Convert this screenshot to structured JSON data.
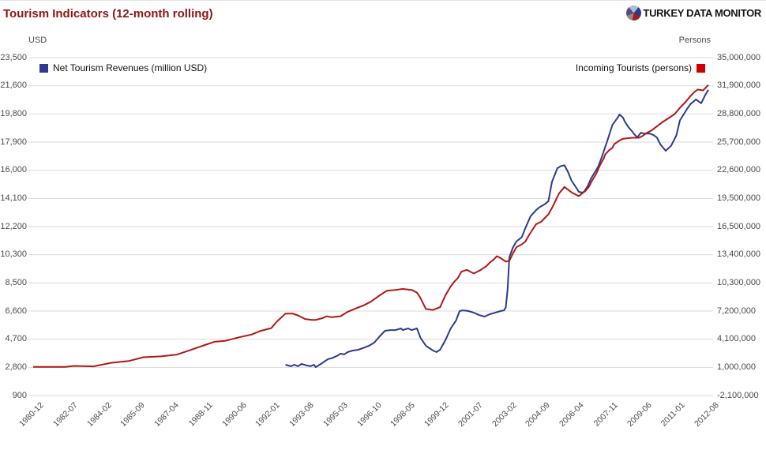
{
  "header": {
    "title": "Tourism Indicators (12-month rolling)",
    "logo_text": "TURKEY DATA MONITOR",
    "logo_pie_segments": [
      [
        "#a8bfd4",
        22
      ],
      [
        "#2e3a8f",
        22
      ],
      [
        "#a51b1b",
        20
      ],
      [
        "#8b8b8b",
        16
      ],
      [
        "#5c4a7d",
        20
      ]
    ]
  },
  "chart_data": {
    "type": "line",
    "title": "Tourism Indicators (12-month rolling)",
    "grid": true,
    "legend_position": "top",
    "left_axis": {
      "unit_label": "USD",
      "min": 900,
      "max": 23500,
      "ticks": [
        "23,500",
        "21,600",
        "19,800",
        "17,900",
        "16,000",
        "14,100",
        "12,200",
        "10,300",
        "8,500",
        "6,600",
        "4,700",
        "2,800",
        "900"
      ]
    },
    "right_axis": {
      "unit_label": "Persons",
      "min": -2100000,
      "max": 35000000,
      "ticks": [
        "35,000,000",
        "31,900,000",
        "28,800,000",
        "25,700,000",
        "22,600,000",
        "19,500,000",
        "16,500,000",
        "13,400,000",
        "10,300,000",
        "7,200,000",
        "4,100,000",
        "1,000,000",
        "-2,100,000"
      ]
    },
    "x_axis": {
      "start_month": "1980-12",
      "end_month": "2012-08",
      "months_total": 380,
      "tick_labels": [
        "1980-12",
        "1982-07",
        "1984-02",
        "1985-09",
        "1987-04",
        "1988-11",
        "1990-06",
        "1992-01",
        "1993-08",
        "1995-03",
        "1996-10",
        "1998-05",
        "1999-12",
        "2001-07",
        "2003-02",
        "2004-09",
        "2006-04",
        "2007-11",
        "2009-06",
        "2011-01",
        "2012-08"
      ]
    },
    "series": [
      {
        "name": "Net Tourism Revenues (million USD)",
        "axis": "left",
        "color": "#2e3a8f",
        "legend_swatch": "#2e3a8f",
        "points": [
          [
            142,
            2960
          ],
          [
            145,
            2860
          ],
          [
            147,
            2960
          ],
          [
            149,
            2860
          ],
          [
            151,
            3020
          ],
          [
            154,
            2910
          ],
          [
            156,
            2860
          ],
          [
            158,
            2960
          ],
          [
            159,
            2800
          ],
          [
            162,
            3020
          ],
          [
            164,
            3180
          ],
          [
            166,
            3340
          ],
          [
            168,
            3390
          ],
          [
            171,
            3550
          ],
          [
            173,
            3700
          ],
          [
            175,
            3650
          ],
          [
            177,
            3810
          ],
          [
            180,
            3910
          ],
          [
            183,
            3960
          ],
          [
            186,
            4090
          ],
          [
            189,
            4230
          ],
          [
            192,
            4440
          ],
          [
            195,
            4860
          ],
          [
            198,
            5230
          ],
          [
            201,
            5280
          ],
          [
            204,
            5280
          ],
          [
            207,
            5390
          ],
          [
            208,
            5280
          ],
          [
            211,
            5390
          ],
          [
            213,
            5280
          ],
          [
            216,
            5390
          ],
          [
            218,
            4760
          ],
          [
            221,
            4230
          ],
          [
            225,
            3910
          ],
          [
            227,
            3810
          ],
          [
            229,
            3960
          ],
          [
            232,
            4600
          ],
          [
            235,
            5390
          ],
          [
            238,
            5920
          ],
          [
            240,
            6550
          ],
          [
            242,
            6600
          ],
          [
            245,
            6550
          ],
          [
            248,
            6440
          ],
          [
            251,
            6280
          ],
          [
            254,
            6180
          ],
          [
            257,
            6340
          ],
          [
            260,
            6440
          ],
          [
            263,
            6550
          ],
          [
            265,
            6600
          ],
          [
            266,
            6810
          ],
          [
            267,
            8000
          ],
          [
            268,
            10150
          ],
          [
            270,
            10800
          ],
          [
            272,
            11200
          ],
          [
            275,
            11500
          ],
          [
            277,
            12100
          ],
          [
            280,
            12900
          ],
          [
            283,
            13300
          ],
          [
            285,
            13500
          ],
          [
            288,
            13700
          ],
          [
            290,
            13900
          ],
          [
            292,
            15200
          ],
          [
            295,
            16100
          ],
          [
            297,
            16250
          ],
          [
            299,
            16300
          ],
          [
            301,
            15850
          ],
          [
            303,
            15260
          ],
          [
            306,
            14740
          ],
          [
            307,
            14530
          ],
          [
            309,
            14470
          ],
          [
            310,
            14530
          ],
          [
            312,
            14890
          ],
          [
            314,
            15420
          ],
          [
            318,
            16210
          ],
          [
            320,
            16840
          ],
          [
            323,
            17900
          ],
          [
            326,
            19000
          ],
          [
            329,
            19500
          ],
          [
            330,
            19700
          ],
          [
            332,
            19480
          ],
          [
            333,
            19210
          ],
          [
            335,
            18850
          ],
          [
            337,
            18580
          ],
          [
            338,
            18420
          ],
          [
            340,
            18160
          ],
          [
            342,
            18480
          ],
          [
            344,
            18420
          ],
          [
            347,
            18420
          ],
          [
            349,
            18330
          ],
          [
            351,
            18160
          ],
          [
            353,
            17690
          ],
          [
            356,
            17270
          ],
          [
            359,
            17600
          ],
          [
            362,
            18300
          ],
          [
            364,
            19300
          ],
          [
            368,
            20070
          ],
          [
            370,
            20400
          ],
          [
            372,
            20600
          ],
          [
            373,
            20700
          ],
          [
            376,
            20450
          ],
          [
            378,
            20950
          ],
          [
            380,
            21350
          ]
        ]
      },
      {
        "name": "Incoming Tourists (persons)",
        "axis": "right",
        "color": "#b01818",
        "legend_swatch": "#cc0000",
        "points": [
          [
            0,
            1050000
          ],
          [
            18,
            1050000
          ],
          [
            23,
            1150000
          ],
          [
            34,
            1100000
          ],
          [
            44,
            1500000
          ],
          [
            54,
            1700000
          ],
          [
            62,
            2100000
          ],
          [
            72,
            2200000
          ],
          [
            81,
            2400000
          ],
          [
            90,
            3000000
          ],
          [
            96,
            3400000
          ],
          [
            102,
            3800000
          ],
          [
            108,
            3900000
          ],
          [
            116,
            4300000
          ],
          [
            123,
            4600000
          ],
          [
            128,
            5000000
          ],
          [
            134,
            5300000
          ],
          [
            137,
            6000000
          ],
          [
            142,
            6900000
          ],
          [
            146,
            6900000
          ],
          [
            149,
            6700000
          ],
          [
            153,
            6300000
          ],
          [
            157,
            6200000
          ],
          [
            159,
            6200000
          ],
          [
            163,
            6400000
          ],
          [
            165,
            6600000
          ],
          [
            168,
            6500000
          ],
          [
            173,
            6600000
          ],
          [
            177,
            7100000
          ],
          [
            182,
            7500000
          ],
          [
            186,
            7800000
          ],
          [
            190,
            8200000
          ],
          [
            195,
            8900000
          ],
          [
            199,
            9400000
          ],
          [
            204,
            9500000
          ],
          [
            208,
            9600000
          ],
          [
            213,
            9500000
          ],
          [
            216,
            9200000
          ],
          [
            218,
            8600000
          ],
          [
            221,
            7400000
          ],
          [
            225,
            7300000
          ],
          [
            229,
            7600000
          ],
          [
            232,
            8900000
          ],
          [
            235,
            9900000
          ],
          [
            237,
            10400000
          ],
          [
            239,
            10800000
          ],
          [
            241,
            11500000
          ],
          [
            244,
            11700000
          ],
          [
            246,
            11500000
          ],
          [
            248,
            11300000
          ],
          [
            250,
            11500000
          ],
          [
            252,
            11700000
          ],
          [
            255,
            12100000
          ],
          [
            257,
            12500000
          ],
          [
            259,
            12800000
          ],
          [
            261,
            13200000
          ],
          [
            263,
            13000000
          ],
          [
            266,
            12600000
          ],
          [
            268,
            12700000
          ],
          [
            270,
            13500000
          ],
          [
            272,
            14200000
          ],
          [
            275,
            14500000
          ],
          [
            277,
            14800000
          ],
          [
            279,
            15500000
          ],
          [
            281,
            16100000
          ],
          [
            283,
            16700000
          ],
          [
            286,
            17000000
          ],
          [
            288,
            17400000
          ],
          [
            290,
            17800000
          ],
          [
            292,
            18500000
          ],
          [
            296,
            20100000
          ],
          [
            299,
            20800000
          ],
          [
            303,
            20200000
          ],
          [
            307,
            19800000
          ],
          [
            311,
            20400000
          ],
          [
            313,
            20900000
          ],
          [
            314,
            21300000
          ],
          [
            317,
            22300000
          ],
          [
            319,
            23200000
          ],
          [
            321,
            23900000
          ],
          [
            322,
            24400000
          ],
          [
            324,
            24800000
          ],
          [
            326,
            25100000
          ],
          [
            327,
            25500000
          ],
          [
            330,
            25900000
          ],
          [
            332,
            26100000
          ],
          [
            337,
            26200000
          ],
          [
            341,
            26200000
          ],
          [
            343,
            26400000
          ],
          [
            345,
            26700000
          ],
          [
            348,
            27000000
          ],
          [
            350,
            27300000
          ],
          [
            352,
            27600000
          ],
          [
            354,
            27900000
          ],
          [
            358,
            28400000
          ],
          [
            361,
            28800000
          ],
          [
            364,
            29500000
          ],
          [
            367,
            30100000
          ],
          [
            370,
            30800000
          ],
          [
            372,
            31200000
          ],
          [
            374,
            31500000
          ],
          [
            377,
            31400000
          ],
          [
            378,
            31600000
          ],
          [
            380,
            32000000
          ]
        ]
      }
    ],
    "layout": {
      "plot_top": 72,
      "plot_bottom": 500,
      "grid_x1": 36,
      "grid_x2": 903,
      "data_x0": 42,
      "data_x1": 897,
      "xtick_y": 507
    }
  }
}
